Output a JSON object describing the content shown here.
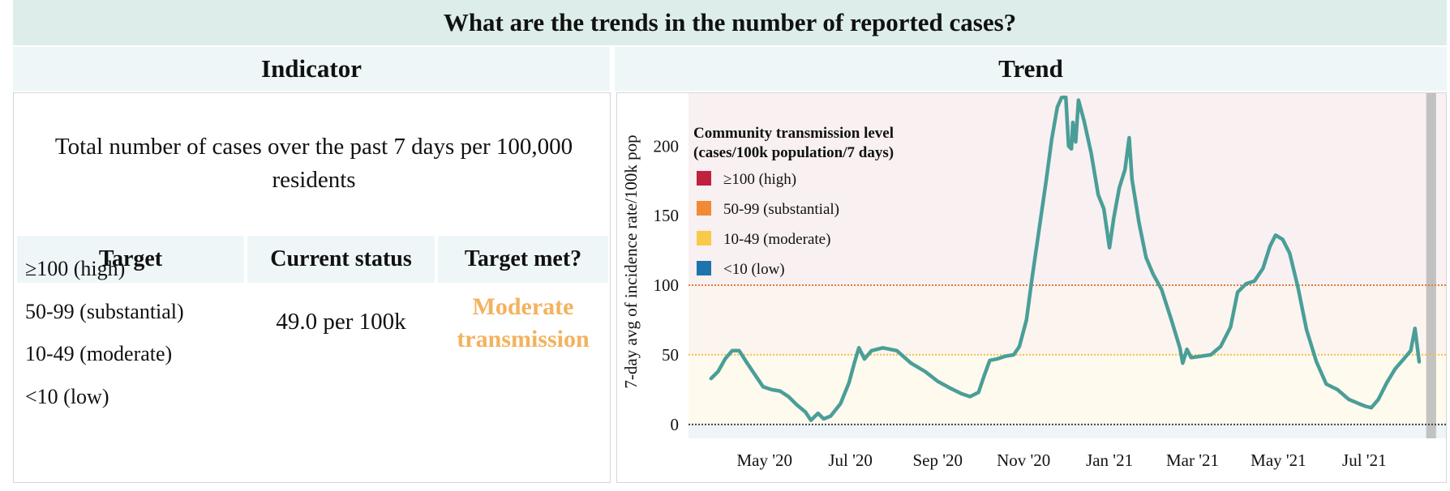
{
  "title": "What are the trends in the number of reported cases?",
  "columns": {
    "indicator": "Indicator",
    "trend": "Trend"
  },
  "indicator": {
    "description": "Total number of cases over the past 7 days per 100,000 residents",
    "table_headers": {
      "target": "Target",
      "status": "Current status",
      "met": "Target met?"
    },
    "levels": [
      "≥100 (high)",
      "50-99 (substantial)",
      "10-49 (moderate)",
      "<10 (low)"
    ],
    "current_status": "49.0 per 100k",
    "target_met_line1": "Moderate",
    "target_met_line2": "transmission",
    "target_met_color": "#f3b25e"
  },
  "chart_data": {
    "type": "line",
    "ylabel": "7-day avg of incidence rate/100k pop",
    "ylim": [
      -10,
      238
    ],
    "yticks": [
      0,
      50,
      100,
      150,
      200
    ],
    "x_tick_labels": [
      "May '20",
      "Jul '20",
      "Sep '20",
      "Nov '20",
      "Jan '21",
      "Mar '21",
      "May '21",
      "Jul '21"
    ],
    "x_tick_dates": [
      "2020-05-01",
      "2020-07-01",
      "2020-09-01",
      "2020-11-01",
      "2021-01-01",
      "2021-03-01",
      "2021-05-01",
      "2021-07-01"
    ],
    "xlim": [
      "2020-03-08",
      "2021-08-28"
    ],
    "thresholds": [
      {
        "value": 100,
        "color": "#e07b39"
      },
      {
        "value": 50,
        "color": "#f2c14e"
      },
      {
        "value": 0,
        "color": "#444444"
      }
    ],
    "shaded_recent_period": [
      "2021-08-14",
      "2021-08-21"
    ],
    "legend": {
      "title_line1": "Community transmission level",
      "title_line2": "(cases/100k population/7 days)",
      "items": [
        {
          "label": "≥100 (high)",
          "color": "#c0213f"
        },
        {
          "label": "50-99 (substantial)",
          "color": "#f08a34"
        },
        {
          "label": "10-49 (moderate)",
          "color": "#f9c94a"
        },
        {
          "label": "<10 (low)",
          "color": "#1f73ad"
        }
      ]
    },
    "series": [
      {
        "color": "#4a9e98",
        "points": [
          [
            "2020-03-24",
            33
          ],
          [
            "2020-03-29",
            38
          ],
          [
            "2020-04-03",
            47
          ],
          [
            "2020-04-08",
            53
          ],
          [
            "2020-04-13",
            53
          ],
          [
            "2020-04-18",
            45
          ],
          [
            "2020-04-24",
            36
          ],
          [
            "2020-04-30",
            27
          ],
          [
            "2020-05-06",
            25
          ],
          [
            "2020-05-12",
            24
          ],
          [
            "2020-05-18",
            20
          ],
          [
            "2020-05-24",
            14
          ],
          [
            "2020-05-30",
            9
          ],
          [
            "2020-06-03",
            3
          ],
          [
            "2020-06-08",
            8
          ],
          [
            "2020-06-12",
            4
          ],
          [
            "2020-06-17",
            6
          ],
          [
            "2020-06-24",
            15
          ],
          [
            "2020-06-30",
            30
          ],
          [
            "2020-07-04",
            45
          ],
          [
            "2020-07-07",
            55
          ],
          [
            "2020-07-11",
            47
          ],
          [
            "2020-07-16",
            53
          ],
          [
            "2020-07-24",
            55
          ],
          [
            "2020-08-03",
            53
          ],
          [
            "2020-08-13",
            44
          ],
          [
            "2020-08-23",
            38
          ],
          [
            "2020-09-01",
            31
          ],
          [
            "2020-09-10",
            26
          ],
          [
            "2020-09-18",
            22
          ],
          [
            "2020-09-24",
            20
          ],
          [
            "2020-09-30",
            23
          ],
          [
            "2020-10-04",
            35
          ],
          [
            "2020-10-08",
            46
          ],
          [
            "2020-10-13",
            47
          ],
          [
            "2020-10-19",
            49
          ],
          [
            "2020-10-25",
            50
          ],
          [
            "2020-10-29",
            56
          ],
          [
            "2020-11-03",
            75
          ],
          [
            "2020-11-07",
            105
          ],
          [
            "2020-11-12",
            140
          ],
          [
            "2020-11-17",
            175
          ],
          [
            "2020-11-21",
            205
          ],
          [
            "2020-11-25",
            228
          ],
          [
            "2020-11-28",
            235
          ],
          [
            "2020-12-01",
            235
          ],
          [
            "2020-12-03",
            200
          ],
          [
            "2020-12-05",
            198
          ],
          [
            "2020-12-06",
            217
          ],
          [
            "2020-12-08",
            203
          ],
          [
            "2020-12-10",
            233
          ],
          [
            "2020-12-14",
            218
          ],
          [
            "2020-12-19",
            195
          ],
          [
            "2020-12-24",
            165
          ],
          [
            "2020-12-28",
            155
          ],
          [
            "2021-01-01",
            127
          ],
          [
            "2021-01-04",
            148
          ],
          [
            "2021-01-08",
            170
          ],
          [
            "2021-01-12",
            183
          ],
          [
            "2021-01-15",
            206
          ],
          [
            "2021-01-17",
            176
          ],
          [
            "2021-01-22",
            145
          ],
          [
            "2021-01-27",
            120
          ],
          [
            "2021-02-01",
            108
          ],
          [
            "2021-02-07",
            97
          ],
          [
            "2021-02-14",
            75
          ],
          [
            "2021-02-20",
            55
          ],
          [
            "2021-02-22",
            44
          ],
          [
            "2021-02-25",
            54
          ],
          [
            "2021-02-28",
            48
          ],
          [
            "2021-03-07",
            49
          ],
          [
            "2021-03-14",
            50
          ],
          [
            "2021-03-21",
            56
          ],
          [
            "2021-03-28",
            70
          ],
          [
            "2021-04-02",
            95
          ],
          [
            "2021-04-08",
            101
          ],
          [
            "2021-04-14",
            103
          ],
          [
            "2021-04-20",
            112
          ],
          [
            "2021-04-25",
            128
          ],
          [
            "2021-04-29",
            136
          ],
          [
            "2021-05-04",
            133
          ],
          [
            "2021-05-09",
            123
          ],
          [
            "2021-05-15",
            98
          ],
          [
            "2021-05-21",
            68
          ],
          [
            "2021-05-28",
            45
          ],
          [
            "2021-06-04",
            29
          ],
          [
            "2021-06-12",
            25
          ],
          [
            "2021-06-20",
            18
          ],
          [
            "2021-06-27",
            15
          ],
          [
            "2021-07-02",
            13
          ],
          [
            "2021-07-06",
            12
          ],
          [
            "2021-07-11",
            18
          ],
          [
            "2021-07-17",
            30
          ],
          [
            "2021-07-23",
            40
          ],
          [
            "2021-07-29",
            47
          ],
          [
            "2021-08-03",
            53
          ],
          [
            "2021-08-06",
            69
          ],
          [
            "2021-08-09",
            45
          ]
        ]
      }
    ]
  }
}
